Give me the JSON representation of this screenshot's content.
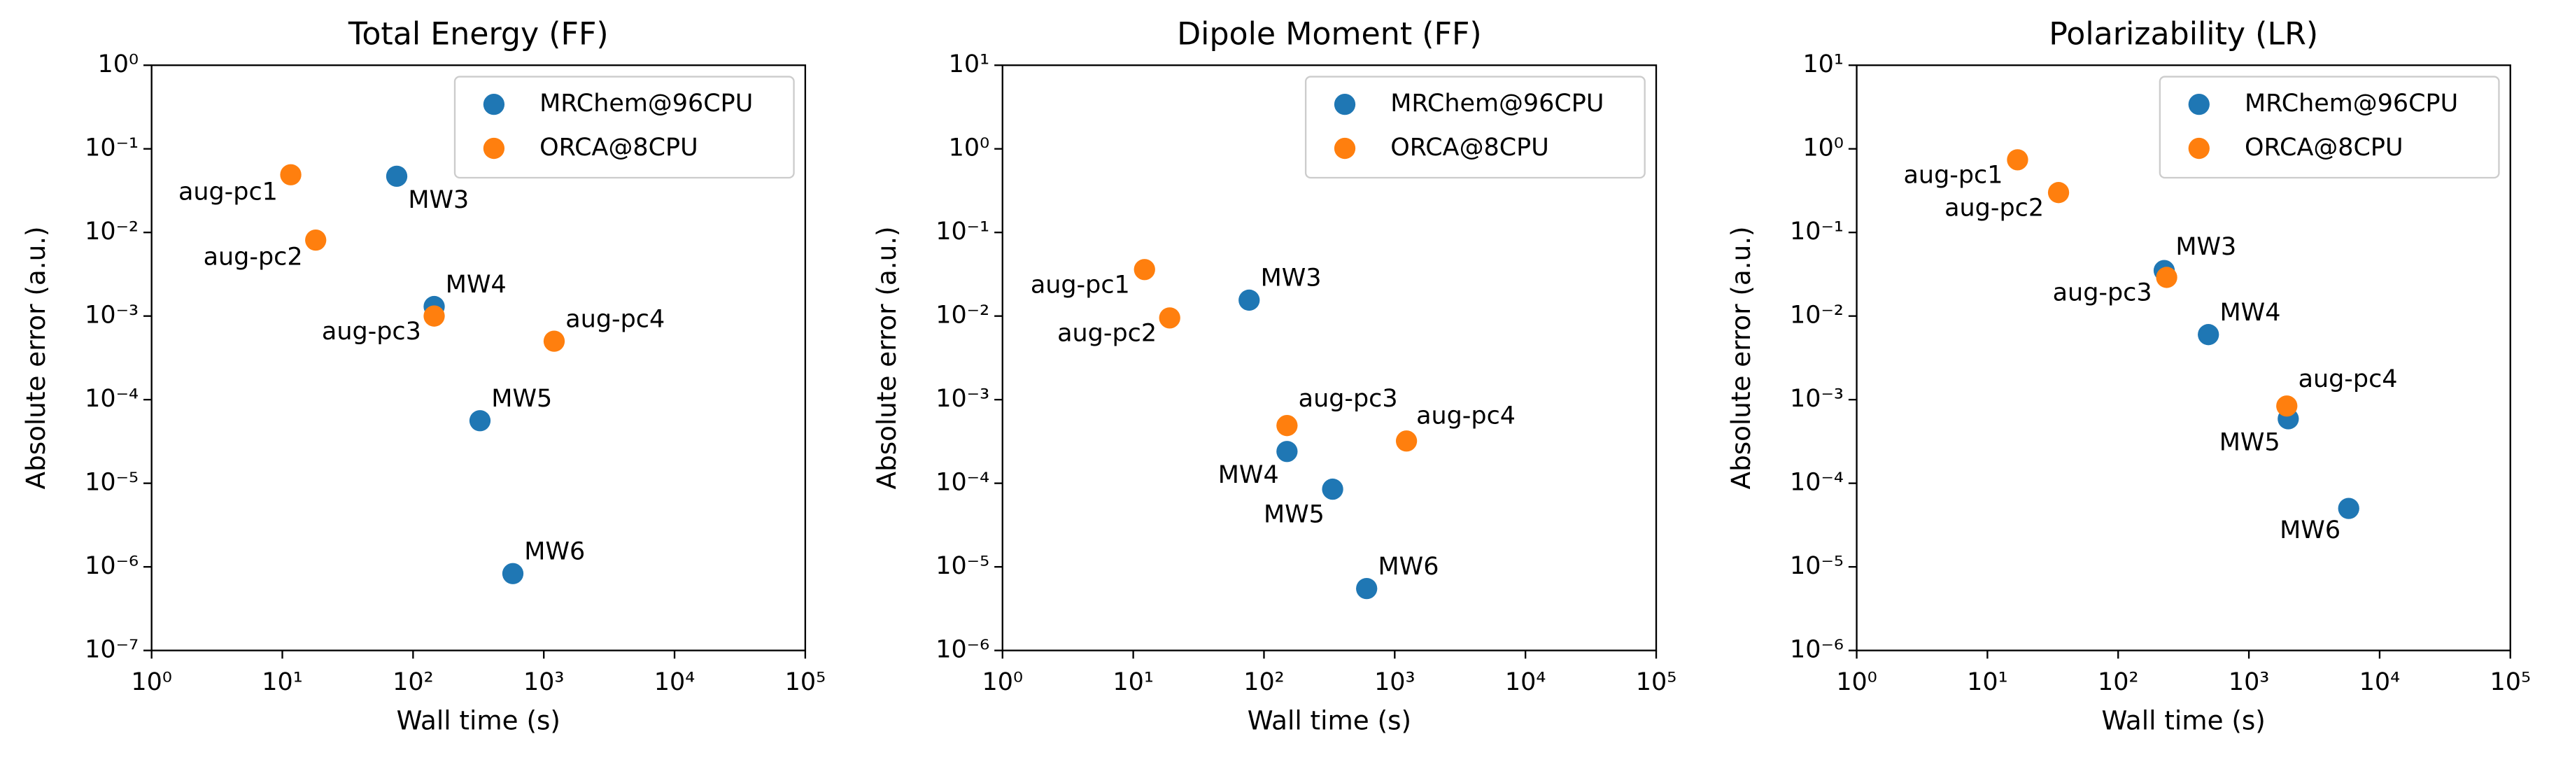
{
  "chart_data": [
    {
      "type": "scatter",
      "title": "Total Energy (FF)",
      "xlabel": "Wall time (s)",
      "ylabel": "Absolute error (a.u.)",
      "xscale": "log",
      "yscale": "log",
      "legend": "upper right",
      "xlim": [
        1,
        100000
      ],
      "xticks": [
        {
          "value": 1,
          "label": "10⁰"
        },
        {
          "value": 10,
          "label": "10¹"
        },
        {
          "value": 100,
          "label": "10²"
        },
        {
          "value": 1000,
          "label": "10³"
        },
        {
          "value": 10000,
          "label": "10⁴"
        },
        {
          "value": 100000,
          "label": "10⁵"
        }
      ],
      "ylim": [
        1e-07,
        1
      ],
      "yticks": [
        {
          "value": 1e-07,
          "label": "10⁻⁷"
        },
        {
          "value": 1e-06,
          "label": "10⁻⁶"
        },
        {
          "value": 1e-05,
          "label": "10⁻⁵"
        },
        {
          "value": 0.0001,
          "label": "10⁻⁴"
        },
        {
          "value": 0.001,
          "label": "10⁻³"
        },
        {
          "value": 0.01,
          "label": "10⁻²"
        },
        {
          "value": 0.1,
          "label": "10⁻¹"
        },
        {
          "value": 1,
          "label": "10⁰"
        }
      ],
      "series": [
        {
          "name": "MRChem@96CPU",
          "color": "#1f77b4",
          "x": [
            75,
            145,
            325,
            580
          ],
          "values": [
            0.047,
            0.0013,
            5.6e-05,
            8.3e-07
          ],
          "point_labels": [
            "MW3",
            "MW4",
            "MW5",
            "MW6"
          ]
        },
        {
          "name": "ORCA@8CPU",
          "color": "#ff7f0e",
          "x": [
            11.6,
            18,
            145,
            1200
          ],
          "values": [
            0.049,
            0.0081,
            0.001,
            0.0005
          ],
          "point_labels": [
            "aug-pc1",
            "aug-pc2",
            "aug-pc3",
            "aug-pc4"
          ]
        }
      ]
    },
    {
      "type": "scatter",
      "title": "Dipole Moment (FF)",
      "xlabel": "Wall time (s)",
      "ylabel": "Absolute error (a.u.)",
      "xscale": "log",
      "yscale": "log",
      "legend": "upper right",
      "xlim": [
        1,
        100000
      ],
      "xticks": [
        {
          "value": 1,
          "label": "10⁰"
        },
        {
          "value": 10,
          "label": "10¹"
        },
        {
          "value": 100,
          "label": "10²"
        },
        {
          "value": 1000,
          "label": "10³"
        },
        {
          "value": 10000,
          "label": "10⁴"
        },
        {
          "value": 100000,
          "label": "10⁵"
        }
      ],
      "ylim": [
        1e-06,
        10
      ],
      "yticks": [
        {
          "value": 1e-06,
          "label": "10⁻⁶"
        },
        {
          "value": 1e-05,
          "label": "10⁻⁵"
        },
        {
          "value": 0.0001,
          "label": "10⁻⁴"
        },
        {
          "value": 0.001,
          "label": "10⁻³"
        },
        {
          "value": 0.01,
          "label": "10⁻²"
        },
        {
          "value": 0.1,
          "label": "10⁻¹"
        },
        {
          "value": 1,
          "label": "10⁰"
        },
        {
          "value": 10,
          "label": "10¹"
        }
      ],
      "series": [
        {
          "name": "MRChem@96CPU",
          "color": "#1f77b4",
          "x": [
            77,
            150,
            335,
            610
          ],
          "values": [
            0.0155,
            0.00024,
            8.5e-05,
            5.5e-06
          ],
          "point_labels": [
            "MW3",
            "MW4",
            "MW5",
            "MW6"
          ]
        },
        {
          "name": "ORCA@8CPU",
          "color": "#ff7f0e",
          "x": [
            12.2,
            19,
            150,
            1230
          ],
          "values": [
            0.036,
            0.0095,
            0.00049,
            0.00032
          ],
          "point_labels": [
            "aug-pc1",
            "aug-pc2",
            "aug-pc3",
            "aug-pc4"
          ]
        }
      ]
    },
    {
      "type": "scatter",
      "title": "Polarizability (LR)",
      "xlabel": "Wall time (s)",
      "ylabel": "Absolute error (a.u.)",
      "xscale": "log",
      "yscale": "log",
      "legend": "upper right",
      "xlim": [
        1,
        100000
      ],
      "xticks": [
        {
          "value": 1,
          "label": "10⁰"
        },
        {
          "value": 10,
          "label": "10¹"
        },
        {
          "value": 100,
          "label": "10²"
        },
        {
          "value": 1000,
          "label": "10³"
        },
        {
          "value": 10000,
          "label": "10⁴"
        },
        {
          "value": 100000,
          "label": "10⁵"
        }
      ],
      "ylim": [
        1e-06,
        10
      ],
      "yticks": [
        {
          "value": 1e-06,
          "label": "10⁻⁶"
        },
        {
          "value": 1e-05,
          "label": "10⁻⁵"
        },
        {
          "value": 0.0001,
          "label": "10⁻⁴"
        },
        {
          "value": 0.001,
          "label": "10⁻³"
        },
        {
          "value": 0.01,
          "label": "10⁻²"
        },
        {
          "value": 0.1,
          "label": "10⁻¹"
        },
        {
          "value": 1,
          "label": "10⁰"
        },
        {
          "value": 10,
          "label": "10¹"
        }
      ],
      "series": [
        {
          "name": "MRChem@96CPU",
          "color": "#1f77b4",
          "x": [
            225,
            490,
            2000,
            5800
          ],
          "values": [
            0.035,
            0.006,
            0.00059,
            5e-05
          ],
          "point_labels": [
            "MW3",
            "MW4",
            "MW5",
            "MW6"
          ]
        },
        {
          "name": "ORCA@8CPU",
          "color": "#ff7f0e",
          "x": [
            17,
            35,
            235,
            1950
          ],
          "values": [
            0.74,
            0.3,
            0.029,
            0.00084
          ],
          "point_labels": [
            "aug-pc1",
            "aug-pc2",
            "aug-pc3",
            "aug-pc4"
          ]
        }
      ]
    }
  ]
}
